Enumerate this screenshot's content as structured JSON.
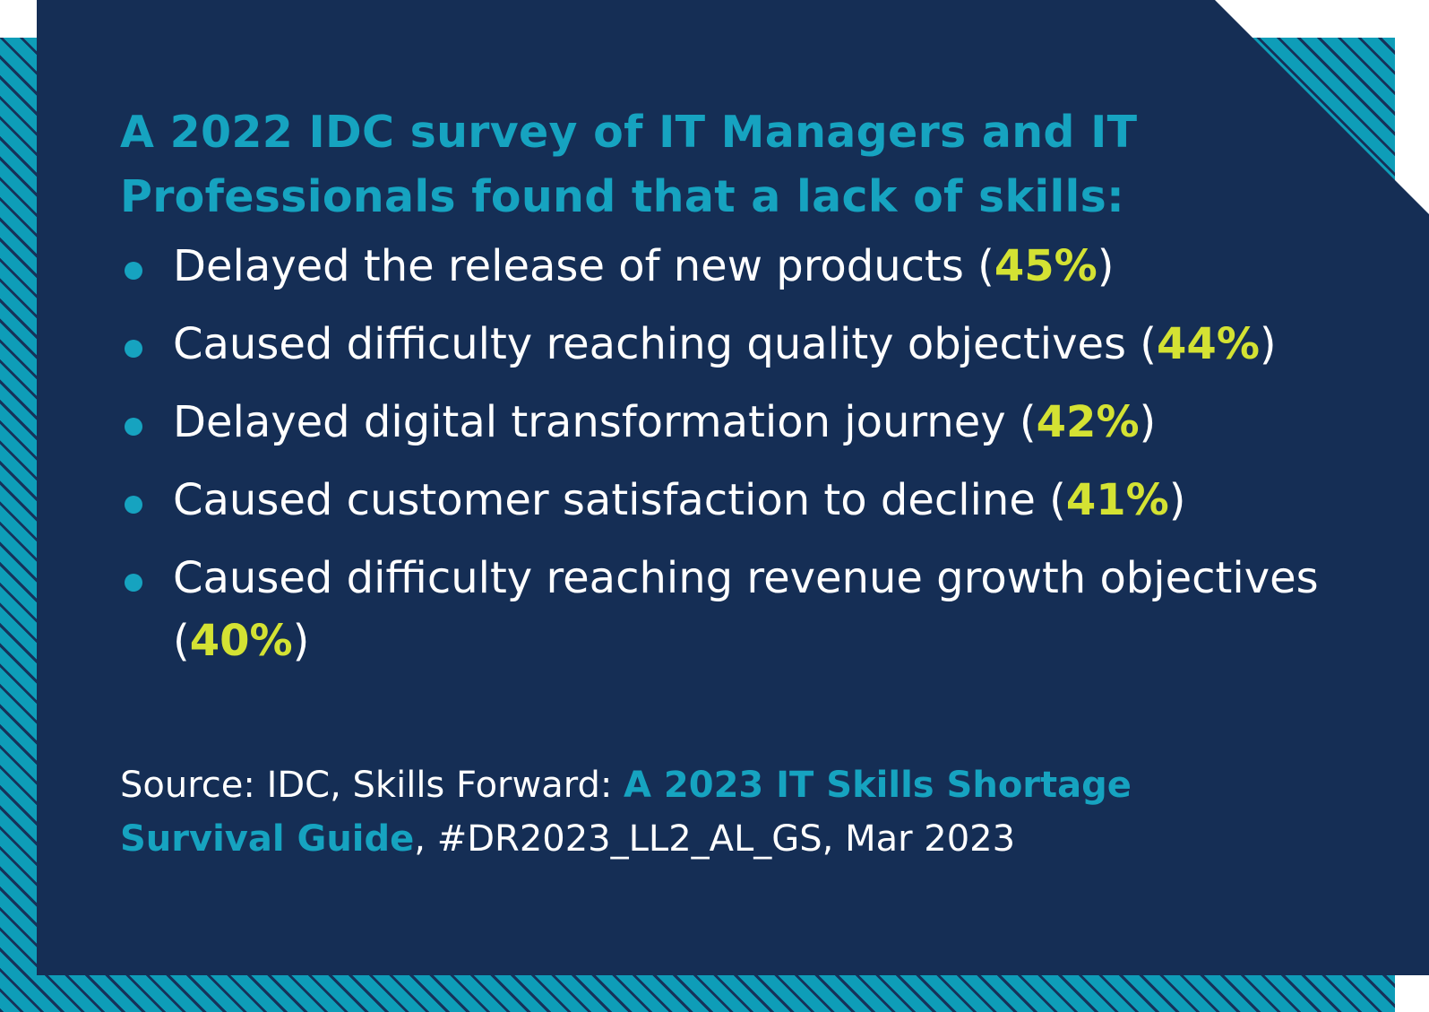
{
  "heading": "A 2022 IDC survey of IT Managers and IT Professionals found that a lack of skills:",
  "bullets": [
    {
      "text": "Delayed the release of new products ",
      "open": "(",
      "percent": "45%",
      "close": ")"
    },
    {
      "text": "Caused difficulty reaching quality objectives ",
      "open": "(",
      "percent": "44%",
      "close": ")"
    },
    {
      "text": "Delayed digital transformation journey ",
      "open": "(",
      "percent": "42%",
      "close": ")"
    },
    {
      "text": "Caused customer satisfaction to decline ",
      "open": "(",
      "percent": "41%",
      "close": ")"
    },
    {
      "text": "Caused difficulty reaching revenue growth objectives ",
      "open": "(",
      "percent": "40%",
      "close": ")"
    }
  ],
  "source": {
    "prefix": "Source: IDC, Skills Forward: ",
    "title": "A 2023 IT Skills Shortage Survival Guide",
    "suffix": ", #DR2023_LL2_AL_GS, Mar 2023"
  },
  "colors": {
    "panel": "#152e55",
    "accent_blue": "#16a3c0",
    "accent_yellow": "#d4e233",
    "text": "#ffffff"
  }
}
